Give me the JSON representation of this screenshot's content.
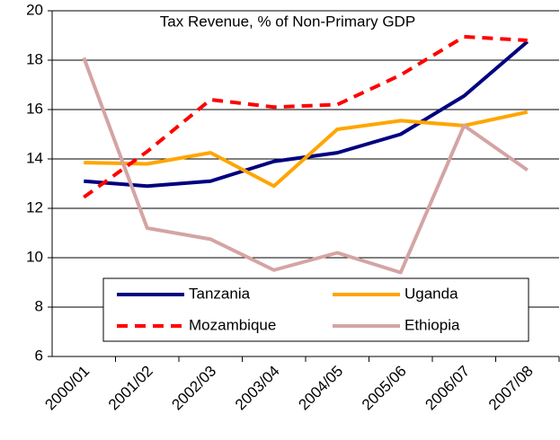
{
  "chart_data": {
    "type": "line",
    "title": "Tax Revenue, % of Non-Primary GDP",
    "categories": [
      "2000/01",
      "2001/02",
      "2002/03",
      "2003/04",
      "2004/05",
      "2005/06",
      "2006/07",
      "2007/08"
    ],
    "series": [
      {
        "name": "Tanzania",
        "color": "#000080",
        "dashed": false,
        "values": [
          13.1,
          12.9,
          13.1,
          13.9,
          14.25,
          15.0,
          16.55,
          18.75
        ]
      },
      {
        "name": "Uganda",
        "color": "#ffa500",
        "dashed": false,
        "values": [
          13.85,
          13.8,
          14.25,
          12.9,
          15.2,
          15.55,
          15.35,
          15.9
        ]
      },
      {
        "name": "Mozambique",
        "color": "#ff0000",
        "dashed": true,
        "values": [
          12.45,
          14.3,
          16.4,
          16.1,
          16.2,
          17.4,
          18.95,
          18.8
        ]
      },
      {
        "name": "Ethiopia",
        "color": "#d4a4a4",
        "dashed": false,
        "values": [
          18.1,
          11.2,
          10.75,
          9.5,
          10.2,
          9.4,
          15.35,
          13.55
        ]
      }
    ],
    "ylim": [
      6,
      20
    ],
    "yticks": [
      6,
      8,
      10,
      12,
      14,
      16,
      18,
      20
    ],
    "grid": true,
    "legend": "bottom"
  }
}
